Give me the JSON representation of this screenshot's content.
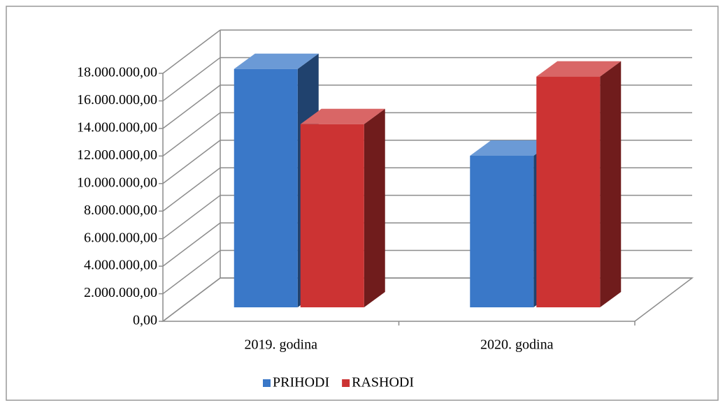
{
  "chart_data": {
    "type": "bar3d",
    "categories": [
      "2019. godina",
      "2020. godina"
    ],
    "series": [
      {
        "name": "PRIHODI",
        "color": "#3a78c8",
        "values": [
          17300000,
          11000000
        ]
      },
      {
        "name": "RASHODI",
        "color": "#cc3333",
        "values": [
          13300000,
          16750000
        ]
      }
    ],
    "ylim": [
      0,
      18000000
    ],
    "yticks": [
      {
        "value": 0,
        "label": "0,00"
      },
      {
        "value": 2000000,
        "label": "2.000.000,00"
      },
      {
        "value": 4000000,
        "label": "4.000.000,00"
      },
      {
        "value": 6000000,
        "label": "6.000.000,00"
      },
      {
        "value": 8000000,
        "label": "8.000.000,00"
      },
      {
        "value": 10000000,
        "label": "10.000.000,00"
      },
      {
        "value": 12000000,
        "label": "12.000.000,00"
      },
      {
        "value": 14000000,
        "label": "14.000.000,00"
      },
      {
        "value": 16000000,
        "label": "16.000.000,00"
      },
      {
        "value": 18000000,
        "label": "18.000.000,00"
      }
    ],
    "grid": true,
    "legend": "bottom"
  }
}
